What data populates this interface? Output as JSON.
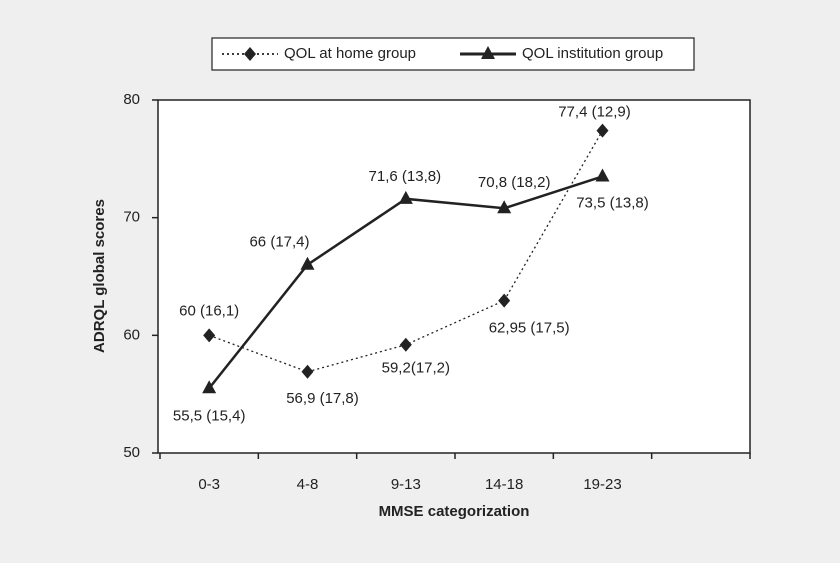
{
  "chart_data": {
    "type": "line",
    "x_label": "MMSE categorization",
    "y_label": "ADRQL global scores",
    "categories": [
      "0-3",
      "4-8",
      "9-13",
      "14-18",
      "19-23",
      null
    ],
    "series": [
      {
        "name": "QOL at home group",
        "color": "#222222",
        "line_style": "dotted",
        "marker": "diamond",
        "values": [
          60,
          56.9,
          59.2,
          62.95,
          77.4,
          null
        ],
        "value_labels": [
          "60 (16,1)",
          "56,9 (17,8)",
          "59,2(17,2)",
          "62,95 (17,5)",
          "77,4 (12,9)",
          null
        ]
      },
      {
        "name": "QOL institution group",
        "color": "#222222",
        "line_style": "solid",
        "marker": "triangle",
        "values": [
          55.5,
          66,
          71.6,
          70.8,
          73.5,
          null
        ],
        "value_labels": [
          "55,5 (15,4)",
          "66 (17,4)",
          "71,6 (13,8)",
          "70,8 (18,2)",
          "73,5 (13,8)",
          null
        ]
      }
    ],
    "ylim": [
      50,
      80
    ],
    "yticks": [
      50,
      60,
      70,
      80
    ],
    "legend": "top",
    "grid": false
  }
}
